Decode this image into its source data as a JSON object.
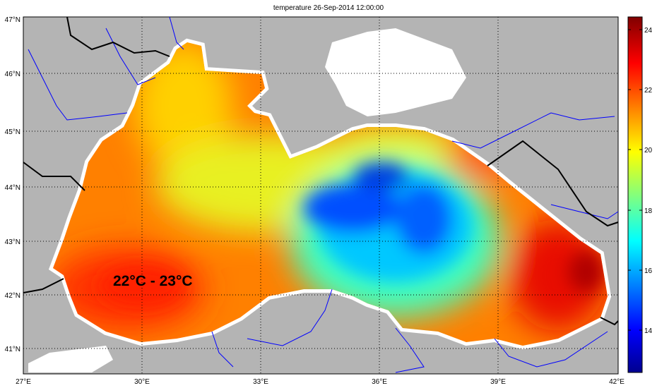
{
  "title": "temperature 26-Sep-2014 12:00:00",
  "map": {
    "lon_range": [
      27,
      42
    ],
    "lat_range": [
      40.55,
      47
    ],
    "lon_ticks": [
      "27°E",
      "30°E",
      "33°E",
      "36°E",
      "39°E",
      "42°E"
    ],
    "lat_ticks": [
      "47°N",
      "46°N",
      "45°N",
      "44°N",
      "43°N",
      "42°N",
      "41°N"
    ],
    "annotation": "22°C - 23°C",
    "colors": {
      "land": "#b4b4b4",
      "river": "#0000ff",
      "border": "#000000",
      "no_data": "#ffffff"
    }
  },
  "colorbar": {
    "range": [
      12.6,
      24.4
    ],
    "ticks": [
      "24",
      "22",
      "20",
      "18",
      "16",
      "14"
    ],
    "colormap": "jet"
  }
}
